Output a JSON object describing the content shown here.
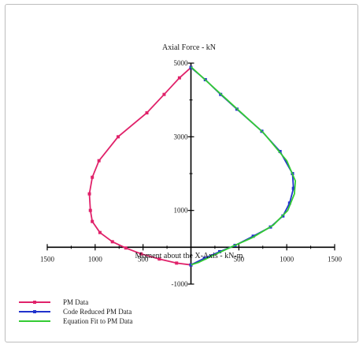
{
  "chart_data": {
    "type": "line",
    "title": "Axial Force - kN",
    "xlabel": "Moment about the X-Axis - kN-m",
    "ylabel": "",
    "xlim": [
      -1500,
      1500
    ],
    "ylim": [
      -1000,
      5000
    ],
    "xticks": [
      -1500,
      -1000,
      -500,
      500,
      1000,
      1500
    ],
    "xtick_labels": [
      "1500",
      "1000",
      "500",
      "500",
      "1000",
      "1500"
    ],
    "yticks": [
      5000,
      3000,
      1000,
      -1000
    ],
    "ytick_labels": [
      "5000",
      "3000",
      "1000",
      "-1000"
    ],
    "grid": false,
    "legend_position": "bottom-left",
    "series": [
      {
        "name": "PM Data",
        "color": "#e0226a",
        "marker": "square",
        "points": [
          [
            0,
            4880
          ],
          [
            -120,
            4600
          ],
          [
            -280,
            4150
          ],
          [
            -460,
            3650
          ],
          [
            -760,
            3000
          ],
          [
            -960,
            2350
          ],
          [
            -1030,
            1900
          ],
          [
            -1060,
            1450
          ],
          [
            -1050,
            1000
          ],
          [
            -1030,
            700
          ],
          [
            -950,
            400
          ],
          [
            -820,
            150
          ],
          [
            -680,
            -20
          ],
          [
            -520,
            -180
          ],
          [
            -330,
            -320
          ],
          [
            -150,
            -430
          ],
          [
            0,
            -480
          ]
        ]
      },
      {
        "name": "Code Reduced PM Data",
        "color": "#2233cc",
        "marker": "square",
        "points": [
          [
            0,
            4880
          ],
          [
            150,
            4550
          ],
          [
            310,
            4150
          ],
          [
            480,
            3750
          ],
          [
            740,
            3150
          ],
          [
            930,
            2600
          ],
          [
            1060,
            2000
          ],
          [
            1070,
            1600
          ],
          [
            1030,
            1200
          ],
          [
            960,
            850
          ],
          [
            830,
            550
          ],
          [
            650,
            300
          ],
          [
            460,
            50
          ],
          [
            300,
            -120
          ],
          [
            140,
            -300
          ],
          [
            0,
            -480
          ]
        ]
      },
      {
        "name": "Equation Fit to PM Data",
        "color": "#33cc33",
        "marker": "none",
        "points": [
          [
            0,
            4900
          ],
          [
            380,
            4000
          ],
          [
            760,
            3100
          ],
          [
            1000,
            2350
          ],
          [
            1090,
            1800
          ],
          [
            1080,
            1450
          ],
          [
            1010,
            1000
          ],
          [
            860,
            600
          ],
          [
            640,
            260
          ],
          [
            440,
            30
          ],
          [
            250,
            -200
          ],
          [
            80,
            -410
          ],
          [
            0,
            -480
          ]
        ]
      }
    ]
  }
}
